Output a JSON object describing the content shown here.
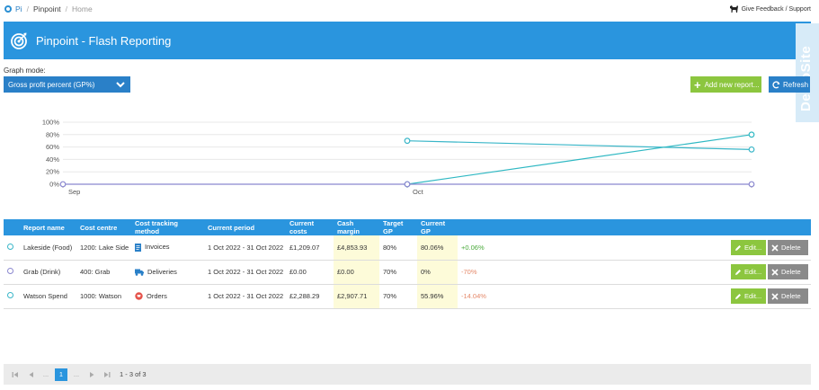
{
  "breadcrumb": {
    "items": [
      "Pi",
      "Pinpoint",
      "Home"
    ],
    "separator": "/"
  },
  "feedback": {
    "label": "Give Feedback / Support"
  },
  "header": {
    "title": "Pinpoint - Flash Reporting",
    "background": "#2a95de"
  },
  "demo_tab": {
    "label": "DemoSite"
  },
  "graph_mode": {
    "label": "Graph mode:",
    "selected": "Gross profit percent (GP%)"
  },
  "toolbar": {
    "add_label": "Add new report...",
    "refresh_label": "Refresh"
  },
  "chart_data": {
    "type": "line",
    "x": [
      "Sep",
      "Oct",
      ""
    ],
    "y_ticks": [
      "100%",
      "80%",
      "60%",
      "40%",
      "20%",
      "0%"
    ],
    "ylim": [
      0,
      100
    ],
    "grid": true,
    "series": [
      {
        "color": "#39b6c8",
        "values": [
          null,
          70,
          56
        ]
      },
      {
        "color": "#2fb8c3",
        "values": [
          null,
          0,
          80
        ]
      },
      {
        "color": "#8b88cf",
        "values": [
          0,
          0,
          0
        ]
      }
    ]
  },
  "table": {
    "columns": [
      "Report name",
      "Cost centre",
      "Cost tracking method",
      "Current period",
      "Current costs",
      "Cash margin",
      "Target GP",
      "Current GP"
    ],
    "rows": [
      {
        "dot": "teal",
        "name": "Lakeside (Food)",
        "cost_centre": "1200: Lake Side",
        "method": "Invoices",
        "method_icon": "invoice-icon",
        "period": "1 Oct 2022 - 31 Oct 2022",
        "costs": "£1,209.07",
        "margin": "£4,853.93",
        "target": "80%",
        "current": "80.06%",
        "change": "+0.06%",
        "change_kind": "pos"
      },
      {
        "dot": "purple",
        "name": "Grab (Drink)",
        "cost_centre": "400: Grab",
        "method": "Deliveries",
        "method_icon": "truck-icon",
        "period": "1 Oct 2022 - 31 Oct 2022",
        "costs": "£0.00",
        "margin": "£0.00",
        "target": "70%",
        "current": "0%",
        "change": "-70%",
        "change_kind": "neg"
      },
      {
        "dot": "teal",
        "name": "Watson Spend",
        "cost_centre": "1000: Watson",
        "method": "Orders",
        "method_icon": "orders-icon",
        "period": "1 Oct 2022 - 31 Oct 2022",
        "costs": "£2,288.29",
        "margin": "£2,907.71",
        "target": "70%",
        "current": "55.96%",
        "change": "-14.04%",
        "change_kind": "neg"
      }
    ],
    "edit_label": "Edit...",
    "delete_label": "Delete"
  },
  "pager": {
    "ellipsis_left": "...",
    "current_page": "1",
    "ellipsis_right": "...",
    "info": "1 - 3 of 3"
  }
}
